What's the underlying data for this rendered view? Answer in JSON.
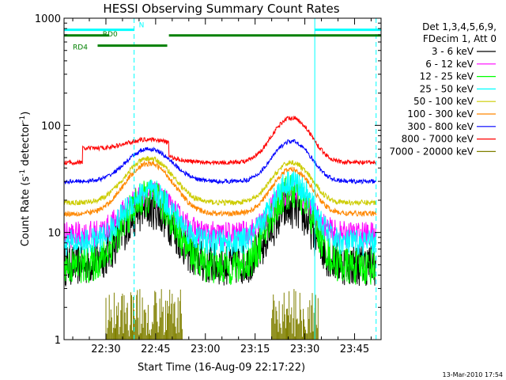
{
  "chart_data": {
    "type": "line",
    "title": "HESSI Observing Summary Count Rates",
    "xlabel": "Start Time (16-Aug-09 22:17:22)",
    "ylabel_main": "Count Rate (s",
    "ylabel_sup1": "-1",
    "ylabel_mid": " detector",
    "ylabel_sup2": "-1",
    "ylabel_end": ")",
    "yscale": "log",
    "ylim": [
      1,
      1000
    ],
    "xlim_minutes_after_2200": [
      17.37,
      113
    ],
    "x_ticks": [
      {
        "label": "22:30",
        "minute": 30
      },
      {
        "label": "22:45",
        "minute": 45
      },
      {
        "label": "23:00",
        "minute": 60
      },
      {
        "label": "23:15",
        "minute": 75
      },
      {
        "label": "23:30",
        "minute": 90
      },
      {
        "label": "23:45",
        "minute": 105
      }
    ],
    "y_ticks": [
      {
        "label": "1",
        "value": 1
      },
      {
        "label": "10",
        "value": 10
      },
      {
        "label": "100",
        "value": 100
      },
      {
        "label": "1000",
        "value": 1000
      }
    ],
    "legend_header": [
      "Det 1,3,4,5,6,9,",
      "FDecim 1, Att 0"
    ],
    "legend_placement": "right",
    "series": [
      {
        "name": "3 - 6 keV",
        "color": "#000000",
        "base": 5.0,
        "peak": 17,
        "peak2": 17,
        "noise": 0.08
      },
      {
        "name": "6 - 12 keV",
        "color": "#ff00ff",
        "base": 9.5,
        "peak": 23,
        "peak2": 24,
        "noise": 0.05
      },
      {
        "name": "12 - 25 keV",
        "color": "#00ff00",
        "base": 4.8,
        "peak": 21,
        "peak2": 24,
        "noise": 0.07
      },
      {
        "name": "25 - 50 keV",
        "color": "#00ffff",
        "base": 8.0,
        "peak": 24,
        "peak2": 30,
        "noise": 0.05
      },
      {
        "name": "50 - 100 keV",
        "color": "#cccc00",
        "base": 19,
        "peak": 49,
        "peak2": 45,
        "noise": 0.025
      },
      {
        "name": "100 - 300 keV",
        "color": "#ff8800",
        "base": 15,
        "peak": 44,
        "peak2": 39,
        "noise": 0.025
      },
      {
        "name": "300 - 800 keV",
        "color": "#0000ff",
        "base": 30,
        "peak": 60,
        "peak2": 71,
        "noise": 0.02
      },
      {
        "name": "800 - 7000 keV",
        "color": "#ff0000",
        "base": 45,
        "peak": 55,
        "peak2": 118,
        "noise": 0.02
      },
      {
        "name": "7000 - 20000 keV",
        "color": "#808000",
        "base": 1,
        "peak": 3,
        "peak2": 3,
        "noise": 0
      }
    ],
    "flags": [
      {
        "label": "N",
        "color": "#00ffff",
        "value": 780,
        "segments": [
          [
            17.4,
            38.5
          ],
          [
            93,
            113
          ]
        ]
      },
      {
        "label": "RD0",
        "color": "#008000",
        "value": 690,
        "segments": [
          [
            17.4,
            31
          ],
          [
            49,
            113
          ]
        ]
      },
      {
        "label": "RD4",
        "color": "#008000",
        "value": 555,
        "segments": [
          [
            27.5,
            48.5
          ]
        ]
      }
    ],
    "solid_vlines_minute": [
      93
    ],
    "dashed_vlines_minute": [
      38.5,
      111.5
    ],
    "grid": false
  },
  "footer": {
    "timestamp": "13-Mar-2010 17:54"
  }
}
